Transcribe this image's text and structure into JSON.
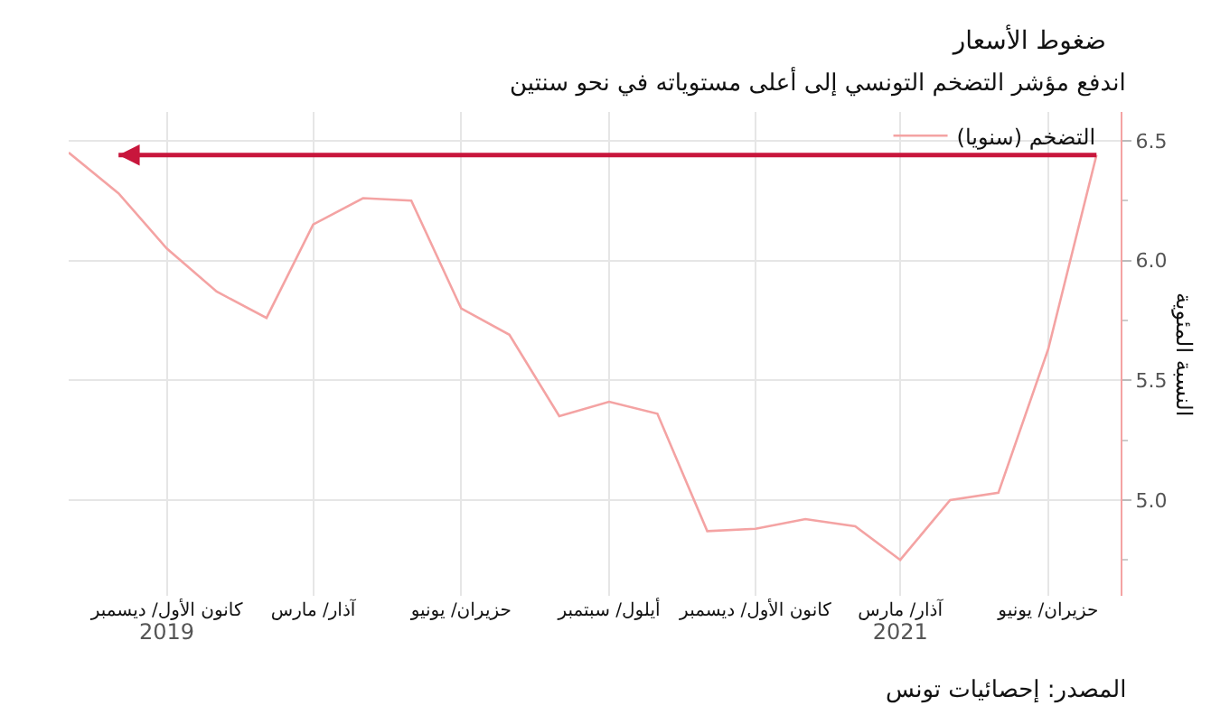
{
  "chart_data": {
    "type": "line",
    "title": "ضغوط الأسعار",
    "subtitle": "اندفع مؤشر التضخم التونسي إلى أعلى مستوياته في نحو سنتين",
    "ylabel": "النسبة المئوية",
    "annotations": [
      "المصدر: إحصائيات تونس"
    ],
    "x": [
      "2019-10",
      "2019-11",
      "2019-12",
      "2020-01",
      "2020-02",
      "2020-03",
      "2020-04",
      "2020-05",
      "2020-06",
      "2020-07",
      "2020-08",
      "2020-09",
      "2020-10",
      "2020-11",
      "2020-12",
      "2021-01",
      "2021-02",
      "2021-03",
      "2021-04",
      "2021-05",
      "2021-06",
      "2021-07"
    ],
    "series": [
      {
        "name": "التضخم (سنويا)",
        "color": "#f4a3a3",
        "values": [
          6.45,
          6.28,
          6.05,
          5.87,
          5.76,
          6.15,
          6.26,
          6.25,
          5.8,
          5.69,
          5.35,
          5.41,
          5.36,
          4.87,
          4.88,
          4.92,
          4.89,
          4.75,
          5.0,
          5.03,
          5.63,
          6.44
        ]
      }
    ],
    "xlim": [
      "2019-10-01",
      "2021-07-16"
    ],
    "xticks": [
      {
        "value": "2019-12",
        "label": "كانون الأول/ ديسمبر\n2019"
      },
      {
        "value": "2020-03",
        "label": "آذار/ مارس"
      },
      {
        "value": "2020-06",
        "label": "حزيران/ يونيو"
      },
      {
        "value": "2020-09",
        "label": "أيلول/ سبتمبر"
      },
      {
        "value": "2020-12",
        "label": "كانون الأول/ ديسمبر"
      },
      {
        "value": "2021-03",
        "label": "آذار/ مارس\n2021"
      },
      {
        "value": "2021-06",
        "label": "حزيران/ يونيو"
      }
    ],
    "ylim": [
      4.6,
      6.62
    ],
    "yticks": [
      {
        "value": 4.75,
        "label": null
      },
      {
        "value": 5,
        "label": "5.0"
      },
      {
        "value": 5.25,
        "label": null
      },
      5.5,
      {
        "value": 5.75,
        "label": null
      },
      {
        "value": 6,
        "label": "6.0"
      },
      {
        "value": 6.25,
        "label": null
      },
      6.5
    ],
    "ref_lines": [
      {
        "axis": "y",
        "value": 6.44,
        "color": "#c8163c"
      }
    ],
    "grid": true,
    "legend": "top right",
    "marker": "none"
  }
}
